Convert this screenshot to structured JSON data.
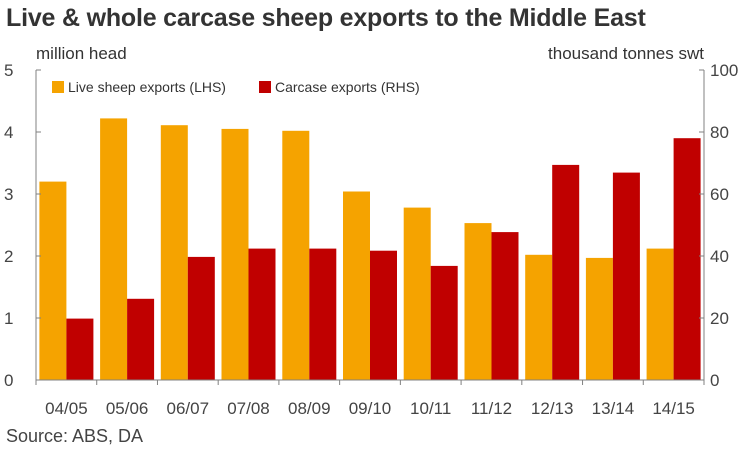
{
  "source": "Source: ABS, DA",
  "colors": {
    "live": "#f5a300",
    "carcase": "#c00000",
    "axis": "#808080"
  },
  "chart_data": {
    "type": "bar",
    "title": "Live & whole carcase sheep exports to the Middle East",
    "categories": [
      "04/05",
      "05/06",
      "06/07",
      "07/08",
      "08/09",
      "09/10",
      "10/11",
      "11/12",
      "12/13",
      "13/14",
      "14/15"
    ],
    "left_axis": {
      "unit": "million head",
      "min": 0,
      "max": 5,
      "ticks": [
        "0",
        "1",
        "2",
        "3",
        "4",
        "5"
      ]
    },
    "right_axis": {
      "unit": "thousand tonnes swt",
      "min": 0,
      "max": 100,
      "ticks": [
        "0",
        "20",
        "40",
        "60",
        "80",
        "100"
      ]
    },
    "series": [
      {
        "name": "Live sheep exports (LHS)",
        "axis": "left",
        "values": [
          3.2,
          4.22,
          4.11,
          4.05,
          4.02,
          3.04,
          2.78,
          2.53,
          2.02,
          1.97,
          2.12
        ]
      },
      {
        "name": "Carcase exports (RHS)",
        "axis": "right",
        "values": [
          19.8,
          26.2,
          39.7,
          42.4,
          42.4,
          41.7,
          36.8,
          47.7,
          69.4,
          66.9,
          78.0
        ]
      }
    ],
    "legend_position": "top-left",
    "grid": false
  }
}
